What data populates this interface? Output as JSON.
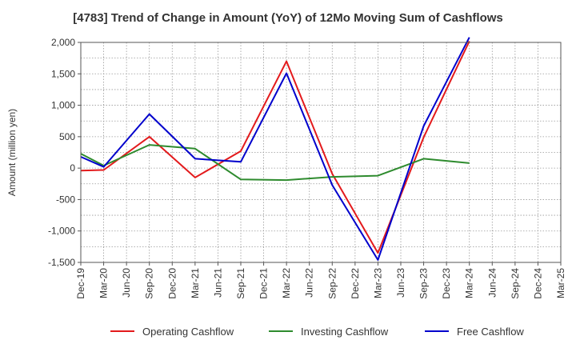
{
  "chart_data": {
    "type": "line",
    "title": "[4783]  Trend of Change in Amount (YoY) of 12Mo Moving Sum of Cashflows",
    "xlabel": "",
    "ylabel": "Amount (million yen)",
    "ylim": [
      -1500,
      2000
    ],
    "y_ticks": [
      2000,
      1500,
      1000,
      500,
      0,
      -500,
      -1000,
      -1500
    ],
    "y_tick_labels": [
      "2,000",
      "1,500",
      "1,000",
      "500",
      "0",
      "-500",
      "-1,000",
      "-1,500"
    ],
    "categories": [
      "Dec-19",
      "Mar-20",
      "Jun-20",
      "Sep-20",
      "Dec-20",
      "Mar-21",
      "Jun-21",
      "Sep-21",
      "Dec-21",
      "Mar-22",
      "Jun-22",
      "Sep-22",
      "Dec-22",
      "Mar-23",
      "Jun-23",
      "Sep-23",
      "Dec-23",
      "Mar-24",
      "Jun-24",
      "Sep-24",
      "Dec-24",
      "Mar-25"
    ],
    "grid": true,
    "legend_position": "bottom",
    "series": [
      {
        "name": "Operating Cashflow",
        "color": "#e31a1c",
        "values": [
          -40,
          -30,
          null,
          500,
          null,
          -150,
          null,
          270,
          null,
          1700,
          null,
          -90,
          null,
          -1350,
          null,
          490,
          null,
          2020,
          null,
          null,
          null,
          null
        ]
      },
      {
        "name": "Investing Cashflow",
        "color": "#2e8b2e",
        "values": [
          230,
          40,
          null,
          370,
          null,
          310,
          null,
          -180,
          null,
          -190,
          null,
          -140,
          null,
          -120,
          null,
          150,
          null,
          80,
          null,
          null,
          null,
          null
        ]
      },
      {
        "name": "Free Cashflow",
        "color": "#0000cc",
        "values": [
          180,
          20,
          null,
          860,
          null,
          150,
          null,
          100,
          null,
          1510,
          null,
          -270,
          null,
          -1460,
          null,
          670,
          null,
          2080,
          null,
          null,
          null,
          null
        ]
      }
    ]
  }
}
